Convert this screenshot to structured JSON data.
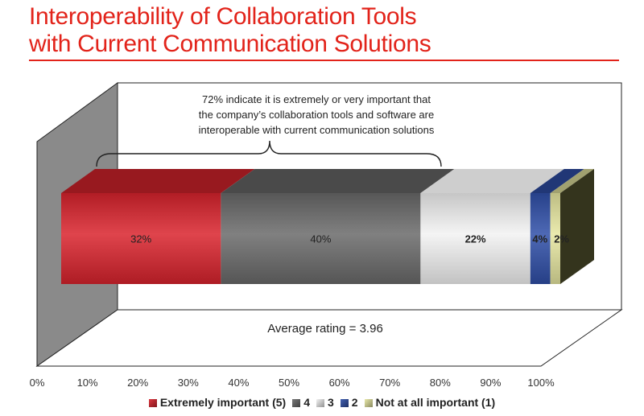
{
  "title_lines": [
    "Interoperability of Collaboration Tools",
    "with Current Communication Solutions"
  ],
  "chart_data": {
    "type": "bar",
    "orientation": "horizontal-stacked-100",
    "xlim": [
      0,
      100
    ],
    "tick_labels": [
      "0%",
      "10%",
      "20%",
      "30%",
      "40%",
      "50%",
      "60%",
      "70%",
      "80%",
      "90%",
      "100%"
    ],
    "series": [
      {
        "name": "Extremely important (5)",
        "value": 32,
        "label": "32%",
        "color": "#d9232d"
      },
      {
        "name": "4",
        "value": 40,
        "label": "40%",
        "color": "#6a6a6a"
      },
      {
        "name": "3",
        "value": 22,
        "label": "22%",
        "color": "#f2f2f2"
      },
      {
        "name": "2",
        "value": 4,
        "label": "4%",
        "color": "#2f4fa8"
      },
      {
        "name": "Not at all important (1)",
        "value": 2,
        "label": "2%",
        "color": "#e6e6a0"
      }
    ],
    "annotation": [
      "72% indicate it is extremely or very important that",
      "the company’s collaboration tools and software are",
      "interoperable with current communication solutions"
    ],
    "average_text": "Average rating = 3.96",
    "legend_position": "bottom"
  },
  "colors": {
    "title": "#e2231a",
    "rule": "#e2231a"
  }
}
